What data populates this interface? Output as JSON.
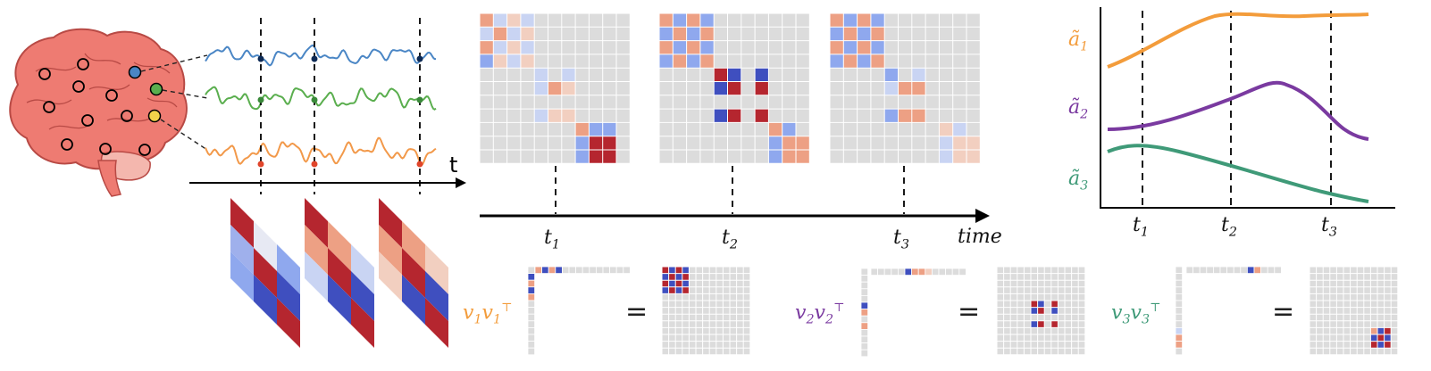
{
  "colors": {
    "brain": "#ee7b72",
    "brain_dark": "#b84a45",
    "blue_signal": "#4a86c5",
    "green_signal": "#5aae4e",
    "orange_signal": "#f2994a",
    "grid_bg": "#dcdcdc",
    "strong_red": "#b5262f",
    "light_red": "#eda084",
    "pale_red": "#f2cfc0",
    "strong_blue": "#3f4fbf",
    "light_blue": "#8fa8ee",
    "pale_blue": "#c9d4f3",
    "curve1": "#f39c3b",
    "curve2": "#7a3aa0",
    "curve3": "#3f9a78"
  },
  "signal_panel": {
    "axis_label": "t",
    "node_marker_colors": [
      "#4a86c5",
      "#5aae4e",
      "#f2d24a"
    ]
  },
  "timeline": {
    "ticks": [
      "t",
      "t",
      "t"
    ],
    "tick_subs": [
      "1",
      "2",
      "3"
    ],
    "axis_label": "time"
  },
  "decomposition": [
    {
      "v": "v",
      "sub": "1",
      "sup": "⊤",
      "color": "#f39c3b",
      "equals": "="
    },
    {
      "v": "v",
      "sub": "2",
      "sup": "⊤",
      "color": "#7a3aa0",
      "equals": "="
    },
    {
      "v": "v",
      "sub": "3",
      "sup": "⊤",
      "color": "#3f9a78",
      "equals": "="
    }
  ],
  "coef_chart": {
    "series": [
      {
        "name": "ã",
        "sub": "1",
        "color": "#f39c3b"
      },
      {
        "name": "ã",
        "sub": "2",
        "color": "#7a3aa0"
      },
      {
        "name": "ã",
        "sub": "3",
        "color": "#3f9a78"
      }
    ],
    "ticks": [
      "t",
      "t",
      "t"
    ],
    "tick_subs": [
      "1",
      "2",
      "3"
    ]
  }
}
